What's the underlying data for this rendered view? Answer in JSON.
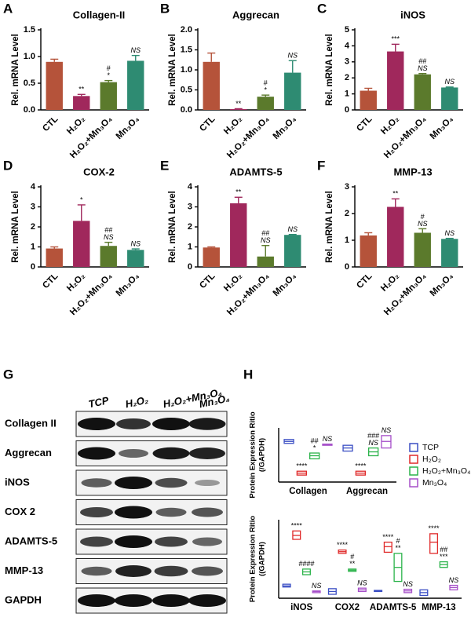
{
  "chart_data": [
    {
      "type": "bar",
      "panel": "A",
      "title": "Collagen-II",
      "ylabel": "Rel. mRNA Level",
      "categories": [
        "CTL",
        "H₂O₂",
        "H₂O₂+Mn₃O₄",
        "Mn₃O₄"
      ],
      "values": [
        0.9,
        0.26,
        0.52,
        0.92
      ],
      "errors": [
        0.05,
        0.03,
        0.03,
        0.1
      ],
      "annotations": [
        null,
        [
          "**"
        ],
        [
          "#",
          "*"
        ],
        [
          "NS"
        ]
      ],
      "colors": [
        "#b5533a",
        "#a0285c",
        "#5b7a2c",
        "#2e8b72"
      ],
      "ylim": [
        0,
        1.5
      ],
      "yticks": [
        {
          "value": 0,
          "label": "0.0"
        },
        0.5,
        {
          "value": 1,
          "label": "1.0"
        },
        1.5
      ]
    },
    {
      "type": "bar",
      "panel": "B",
      "title": "Aggrecan",
      "ylabel": "Rel. mRNA Level",
      "categories": [
        "CTL",
        "H₂O₂",
        "H₂O₂+Mn₃O₄",
        "Mn₃O₄"
      ],
      "values": [
        1.2,
        0.02,
        0.33,
        0.93
      ],
      "errors": [
        0.22,
        0.01,
        0.04,
        0.3
      ],
      "annotations": [
        null,
        [
          "**"
        ],
        [
          "#",
          "*"
        ],
        [
          "NS"
        ]
      ],
      "colors": [
        "#b5533a",
        "#a0285c",
        "#5b7a2c",
        "#2e8b72"
      ],
      "ylim": [
        0,
        2
      ],
      "yticks": [
        {
          "value": 0,
          "label": "0.0"
        },
        0.5,
        {
          "value": 1,
          "label": "1.0"
        },
        1.5,
        {
          "value": 2,
          "label": "2.0"
        }
      ]
    },
    {
      "type": "bar",
      "panel": "C",
      "title": "iNOS",
      "ylabel": "Rel. mRNA Level",
      "categories": [
        "CTL",
        "H₂O₂",
        "H₂O₂+Mn₃O₄",
        "Mn₃O₄"
      ],
      "values": [
        1.2,
        3.65,
        2.22,
        1.4
      ],
      "errors": [
        0.15,
        0.45,
        0.05,
        0.03
      ],
      "annotations": [
        null,
        [
          "***"
        ],
        [
          "##",
          "NS"
        ],
        [
          "NS"
        ]
      ],
      "colors": [
        "#b5533a",
        "#a0285c",
        "#5b7a2c",
        "#2e8b72"
      ],
      "ylim": [
        0,
        5
      ],
      "yticks": [
        0,
        1,
        2,
        3,
        4,
        5
      ]
    },
    {
      "type": "bar",
      "panel": "D",
      "title": "COX-2",
      "ylabel": "Rel. mRNA Level",
      "categories": [
        "CTL",
        "H₂O₂",
        "H₂O₂+Mn₃O₄",
        "Mn₃O₄"
      ],
      "values": [
        0.92,
        2.3,
        1.05,
        0.85
      ],
      "errors": [
        0.08,
        0.8,
        0.18,
        0.05
      ],
      "annotations": [
        null,
        [
          "*"
        ],
        [
          "##",
          "NS"
        ],
        [
          "NS"
        ]
      ],
      "colors": [
        "#b5533a",
        "#a0285c",
        "#5b7a2c",
        "#2e8b72"
      ],
      "ylim": [
        0,
        4
      ],
      "yticks": [
        0,
        1,
        2,
        3,
        4
      ]
    },
    {
      "type": "bar",
      "panel": "E",
      "title": "ADAMTS-5",
      "ylabel": "Rel. mRNA Level",
      "categories": [
        "CTL",
        "H₂O₂",
        "H₂O₂+Mn₃O₄",
        "Mn₃O₄"
      ],
      "values": [
        0.97,
        3.18,
        0.52,
        1.6
      ],
      "errors": [
        0.03,
        0.3,
        0.55,
        0.02
      ],
      "annotations": [
        null,
        [
          "**"
        ],
        [
          "##",
          "NS"
        ],
        [
          "NS"
        ]
      ],
      "colors": [
        "#b5533a",
        "#a0285c",
        "#5b7a2c",
        "#2e8b72"
      ],
      "ylim": [
        0,
        4
      ],
      "yticks": [
        0,
        1,
        2,
        3,
        4
      ]
    },
    {
      "type": "bar",
      "panel": "F",
      "title": "MMP-13",
      "ylabel": "Rel. mRNA Level",
      "categories": [
        "CTL",
        "H₂O₂",
        "H₂O₂+Mn₃O₄",
        "Mn₃O₄"
      ],
      "values": [
        1.18,
        2.25,
        1.28,
        1.05
      ],
      "errors": [
        0.1,
        0.3,
        0.15,
        0.02
      ],
      "annotations": [
        null,
        [
          "**"
        ],
        [
          "#",
          "NS"
        ],
        [
          "NS"
        ]
      ],
      "colors": [
        "#b5533a",
        "#a0285c",
        "#5b7a2c",
        "#2e8b72"
      ],
      "ylim": [
        0,
        3
      ],
      "yticks": [
        0,
        1,
        2,
        3
      ]
    },
    {
      "type": "box",
      "panel": "H",
      "ylabel": [
        "Protein Expression Ritio",
        "(/GAPDH)"
      ],
      "categories": [
        "Collagen",
        "Aggrecan"
      ],
      "ylim": [
        0,
        1.4
      ],
      "legend": "right",
      "series": [
        {
          "name": "TCP",
          "color": "#3b4fc4",
          "low": [
            1.0,
            0.8
          ],
          "mid": [
            1.05,
            0.88
          ],
          "high": [
            1.1,
            0.95
          ],
          "annotations": [
            null,
            null
          ]
        },
        {
          "name": "H₂O₂",
          "color": "#e02a2a",
          "low": [
            0.18,
            0.18
          ],
          "mid": [
            0.23,
            0.23
          ],
          "high": [
            0.28,
            0.28
          ],
          "annotations": [
            [
              "****"
            ],
            [
              "****"
            ]
          ]
        },
        {
          "name": "H₂O₂+Mn₃O₄",
          "color": "#2bb34a",
          "low": [
            0.6,
            0.68
          ],
          "mid": [
            0.68,
            0.78
          ],
          "high": [
            0.75,
            0.88
          ],
          "annotations": [
            [
              "##",
              "*"
            ],
            [
              "###",
              "NS"
            ]
          ]
        },
        {
          "name": "Mn₃O₄",
          "color": "#a64fc9",
          "low": [
            0.95,
            0.88
          ],
          "mid": [
            0.97,
            1.05
          ],
          "high": [
            0.98,
            1.2
          ],
          "annotations": [
            [
              "NS"
            ],
            [
              "NS"
            ]
          ]
        }
      ]
    },
    {
      "type": "box",
      "ylabel": [
        "Protein Expression Ritio",
        "((GAPDH)"
      ],
      "categories": [
        "iNOS",
        "COX2",
        "ADAMTS-5",
        "MMP-13"
      ],
      "ylim": [
        0,
        1.4
      ],
      "series": [
        {
          "name": "TCP",
          "color": "#3b4fc4",
          "low": [
            0.2,
            0.07,
            0.12,
            0.05
          ],
          "mid": [
            0.22,
            0.12,
            0.13,
            0.1
          ],
          "high": [
            0.25,
            0.17,
            0.14,
            0.15
          ],
          "annotations": [
            null,
            null,
            null,
            null
          ]
        },
        {
          "name": "H₂O₂",
          "color": "#e02a2a",
          "low": [
            1.05,
            0.8,
            0.82,
            0.8
          ],
          "mid": [
            1.12,
            0.83,
            0.92,
            1.0
          ],
          "high": [
            1.2,
            0.86,
            1.0,
            1.15
          ],
          "annotations": [
            [
              "****"
            ],
            [
              "****"
            ],
            [
              "****"
            ],
            [
              "****"
            ]
          ]
        },
        {
          "name": "H₂O₂+Mn₃O₄",
          "color": "#2bb34a",
          "low": [
            0.42,
            0.48,
            0.3,
            0.55
          ],
          "mid": [
            0.47,
            0.5,
            0.55,
            0.6
          ],
          "high": [
            0.52,
            0.52,
            0.8,
            0.65
          ],
          "annotations": [
            [
              "####"
            ],
            [
              "#",
              "**"
            ],
            [
              "#",
              "**"
            ],
            [
              "##",
              "***"
            ]
          ]
        },
        {
          "name": "Mn₃O₄",
          "color": "#a64fc9",
          "low": [
            0.1,
            0.12,
            0.1,
            0.15
          ],
          "mid": [
            0.12,
            0.15,
            0.13,
            0.19
          ],
          "high": [
            0.13,
            0.18,
            0.16,
            0.23
          ],
          "annotations": [
            [
              "NS"
            ],
            [
              "NS"
            ],
            [
              "NS"
            ],
            [
              "NS"
            ]
          ]
        }
      ]
    }
  ],
  "blot": {
    "panel": "G",
    "columns": [
      "TCP",
      "H₂O₂",
      "H₂O₂+Mn₃O₄",
      "Mn₃O₄"
    ],
    "rows": [
      "Collagen II",
      "Aggrecan",
      "iNOS",
      "COX 2",
      "ADAMTS-5",
      "MMP-13",
      "GAPDH"
    ]
  }
}
